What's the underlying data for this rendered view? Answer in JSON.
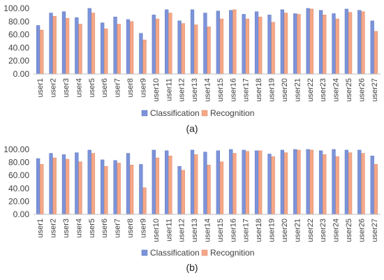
{
  "colors": {
    "classification": "#7C93D9",
    "recognition": "#F5A787",
    "axis": "#BFBFBF",
    "text": "#404040"
  },
  "chart_data": [
    {
      "type": "bar",
      "caption": "(a)",
      "categories": [
        "user1",
        "user2",
        "user3",
        "user4",
        "user5",
        "user6",
        "user7",
        "user8",
        "user9",
        "user10",
        "user11",
        "user12",
        "user13",
        "user14",
        "user15",
        "user16",
        "user17",
        "user18",
        "user19",
        "user20",
        "user21",
        "user22",
        "user23",
        "user24",
        "user25",
        "user26",
        "user27"
      ],
      "ylim": [
        0,
        100
      ],
      "yticks": [
        "0.00",
        "20.00",
        "40.00",
        "60.00",
        "80.00",
        "100.00"
      ],
      "grid": false,
      "legend_position": "bottom",
      "series": [
        {
          "name": "Classification",
          "values": [
            74,
            93,
            95,
            86,
            100,
            78,
            87,
            83,
            62,
            90,
            98,
            81,
            98,
            93,
            96,
            97,
            91,
            95,
            90,
            98,
            92,
            100,
            97,
            92,
            99,
            97,
            81
          ]
        },
        {
          "name": "Recognition",
          "values": [
            67,
            88,
            85,
            76,
            93,
            69,
            76,
            80,
            52,
            84,
            93,
            77,
            75,
            72,
            84,
            98,
            84,
            87,
            79,
            93,
            91,
            99,
            90,
            84,
            94,
            95,
            65
          ]
        }
      ]
    },
    {
      "type": "bar",
      "caption": "(b)",
      "categories": [
        "user1",
        "user2",
        "user3",
        "user4",
        "user5",
        "user6",
        "user7",
        "user8",
        "user9",
        "user10",
        "user11",
        "user12",
        "user13",
        "user14",
        "user15",
        "user16",
        "user17",
        "user18",
        "user19",
        "user20",
        "user21",
        "user22",
        "user23",
        "user24",
        "user25",
        "user26",
        "user27"
      ],
      "ylim": [
        0,
        100
      ],
      "yticks": [
        "0.00",
        "20.00",
        "40.00",
        "60.00",
        "80.00",
        "100.00"
      ],
      "grid": false,
      "legend_position": "bottom",
      "series": [
        {
          "name": "Classification",
          "values": [
            86,
            94,
            92,
            95,
            99,
            84,
            83,
            94,
            77,
            99,
            98,
            74,
            99,
            96,
            98,
            100,
            99,
            98,
            93,
            99,
            100,
            100,
            98,
            100,
            99,
            99,
            90
          ]
        },
        {
          "name": "Recognition",
          "values": [
            77,
            87,
            85,
            81,
            94,
            74,
            79,
            76,
            41,
            87,
            90,
            68,
            92,
            76,
            81,
            94,
            97,
            98,
            89,
            95,
            99,
            99,
            92,
            89,
            95,
            94,
            77
          ]
        }
      ]
    }
  ]
}
